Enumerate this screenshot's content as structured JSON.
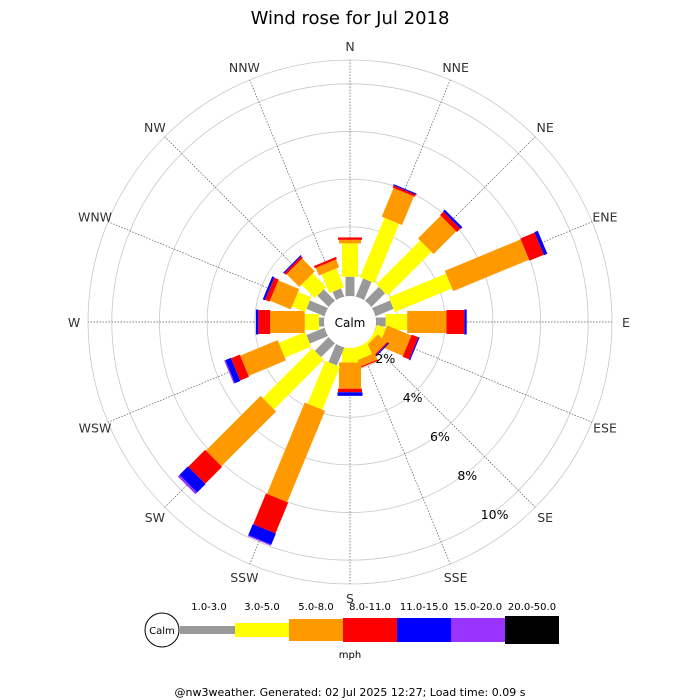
{
  "chart_data": {
    "type": "wind-rose",
    "title": "Wind rose for Jul 2018",
    "directions": [
      "N",
      "NNE",
      "NE",
      "ENE",
      "E",
      "ESE",
      "SE",
      "SSE",
      "S",
      "SSW",
      "SW",
      "WSW",
      "W",
      "WNW",
      "NW",
      "NNW"
    ],
    "radial_ticks": [
      "2%",
      "4%",
      "6%",
      "8%",
      "10%"
    ],
    "radial_tick_values": [
      2,
      4,
      6,
      8,
      10
    ],
    "radial_max": 11,
    "calm_label": "Calm",
    "units": "mph",
    "bins": [
      {
        "label": "1.0-3.0",
        "color": "#999999"
      },
      {
        "label": "3.0-5.0",
        "color": "#ffff00"
      },
      {
        "label": "5.0-8.0",
        "color": "#ff9900"
      },
      {
        "label": "8.0-11.0",
        "color": "#ff0000"
      },
      {
        "label": "11.0-15.0",
        "color": "#0000ff"
      },
      {
        "label": "15.0-20.0",
        "color": "#9933ff"
      },
      {
        "label": "20.0-50.0",
        "color": "#000000"
      }
    ],
    "series_cumulative_percent": {
      "N": [
        1.9,
        3.3,
        3.45,
        3.55,
        3.55,
        3.55,
        3.55
      ],
      "NNE": [
        1.9,
        4.6,
        5.9,
        6.0,
        6.05,
        6.05,
        6.05
      ],
      "NE": [
        1.9,
        4.5,
        5.85,
        6.05,
        6.15,
        6.15,
        6.15
      ],
      "ENE": [
        1.9,
        4.5,
        7.95,
        8.6,
        8.75,
        8.75,
        8.75
      ],
      "E": [
        1.5,
        2.4,
        4.05,
        4.8,
        4.9,
        4.9,
        4.9
      ],
      "ESE": [
        1.1,
        1.5,
        2.6,
        2.9,
        2.95,
        2.95,
        2.95
      ],
      "SE": [
        0.45,
        1.2,
        1.7,
        1.75,
        1.8,
        1.8,
        1.8
      ],
      "SSE": [
        0.35,
        1.6,
        1.9,
        1.95,
        1.95,
        1.95,
        1.95
      ],
      "S": [
        1.0,
        1.7,
        2.8,
        2.95,
        3.1,
        3.1,
        3.1
      ],
      "SSW": [
        1.9,
        3.85,
        8.0,
        9.4,
        9.9,
        9.95,
        9.95
      ],
      "SW": [
        1.9,
        4.85,
        8.1,
        9.1,
        9.6,
        9.7,
        9.7
      ],
      "WSW": [
        1.9,
        3.1,
        4.8,
        5.2,
        5.45,
        5.5,
        5.5
      ],
      "W": [
        1.3,
        1.9,
        3.35,
        3.85,
        3.95,
        3.95,
        3.95
      ],
      "WNW": [
        1.9,
        2.5,
        3.45,
        3.65,
        3.75,
        3.75,
        3.75
      ],
      "NW": [
        1.75,
        2.55,
        3.3,
        3.4,
        3.45,
        3.45,
        3.45
      ],
      "NNW": [
        1.45,
        2.3,
        2.65,
        2.75,
        2.75,
        2.75,
        2.75
      ]
    }
  },
  "footer": "@nw3weather.  Generated: 02 Jul 2025 12:27; Load time: 0.09 s"
}
